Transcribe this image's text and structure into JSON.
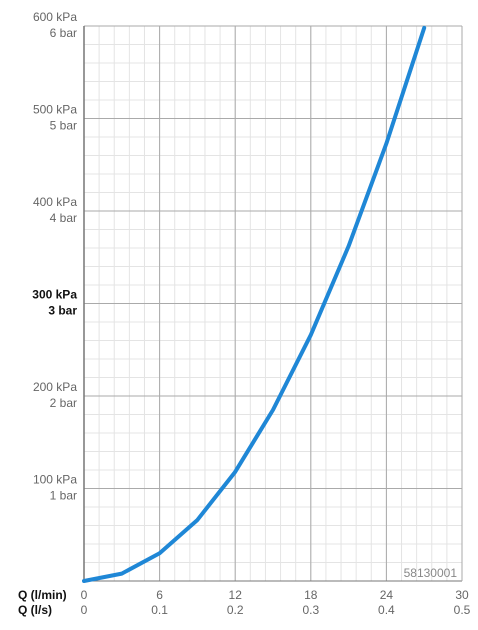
{
  "chart_data": {
    "type": "line",
    "xlabel": "Q (l/min)",
    "x2label": "Q (l/s)",
    "x": [
      0,
      3,
      6,
      9,
      12,
      15,
      18,
      21,
      24,
      27
    ],
    "series": [
      {
        "color": "#1f87d6",
        "values": [
          0,
          8,
          30,
          66,
          118,
          185,
          266,
          362,
          473,
          598
        ]
      }
    ],
    "xlim": [
      0,
      30
    ],
    "xticks": [
      0,
      6,
      12,
      18,
      24,
      30
    ],
    "x2lim": [
      0,
      0.5
    ],
    "x2ticks": [
      0,
      0.1,
      0.2,
      0.3,
      0.4,
      0.5
    ],
    "ylim": [
      0,
      600
    ],
    "yticks": [
      {
        "value": 100,
        "label": "100 kPa"
      },
      {
        "value": 200,
        "label": "200 kPa"
      },
      {
        "value": 300,
        "label": "300 kPa"
      },
      {
        "value": 400,
        "label": "400 kPa"
      },
      {
        "value": 500,
        "label": "500 kPa"
      },
      {
        "value": 600,
        "label": "600 kPa"
      }
    ],
    "ybarticks": [
      {
        "value": 100,
        "label": "1 bar"
      },
      {
        "value": 200,
        "label": "2 bar"
      },
      {
        "value": 300,
        "label": "3 bar"
      },
      {
        "value": 400,
        "label": "4 bar"
      },
      {
        "value": 500,
        "label": "5 bar"
      },
      {
        "value": 600,
        "label": "6 bar"
      }
    ],
    "bold_ytick": 300,
    "grid": true,
    "minor_divisions": 5,
    "annotation": "58130001"
  }
}
